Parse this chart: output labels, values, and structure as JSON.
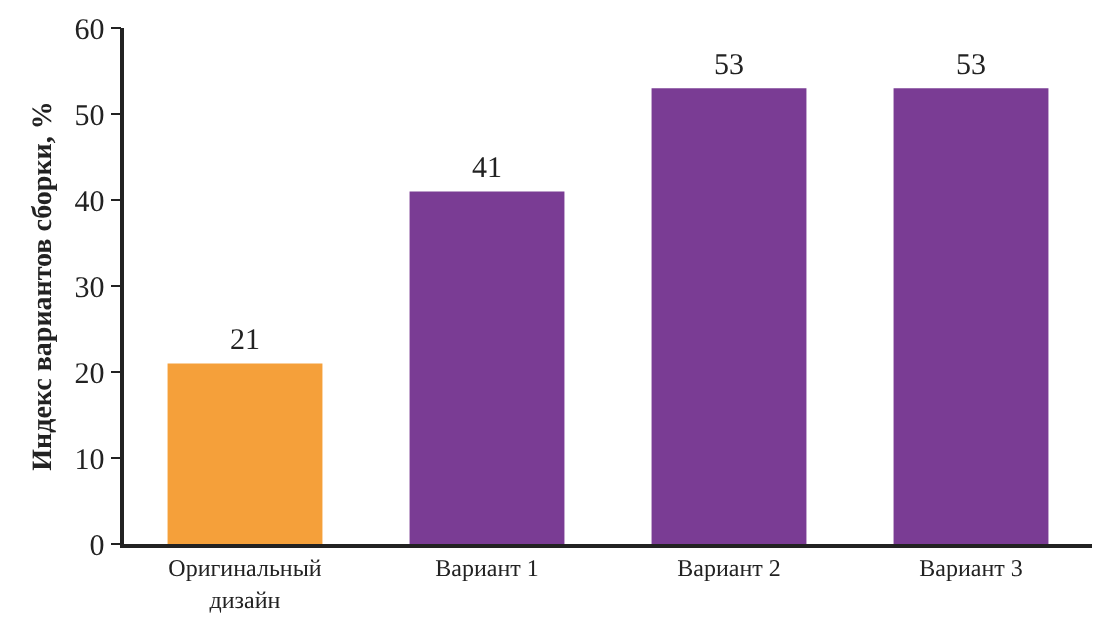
{
  "chart_data": {
    "type": "bar",
    "ylabel": "Индекс вариантов сборки, %",
    "categories": [
      "Оригинальный дизайн",
      "Вариант 1",
      "Вариант 2",
      "Вариант 3"
    ],
    "values": [
      21,
      41,
      53,
      53
    ],
    "colors": [
      "#f5a03a",
      "#7a3c94",
      "#7a3c94",
      "#7a3c94"
    ],
    "ylim": [
      0,
      60
    ],
    "yticks": [
      0,
      10,
      20,
      30,
      40,
      50,
      60
    ],
    "grid": false,
    "data_labels": true
  }
}
